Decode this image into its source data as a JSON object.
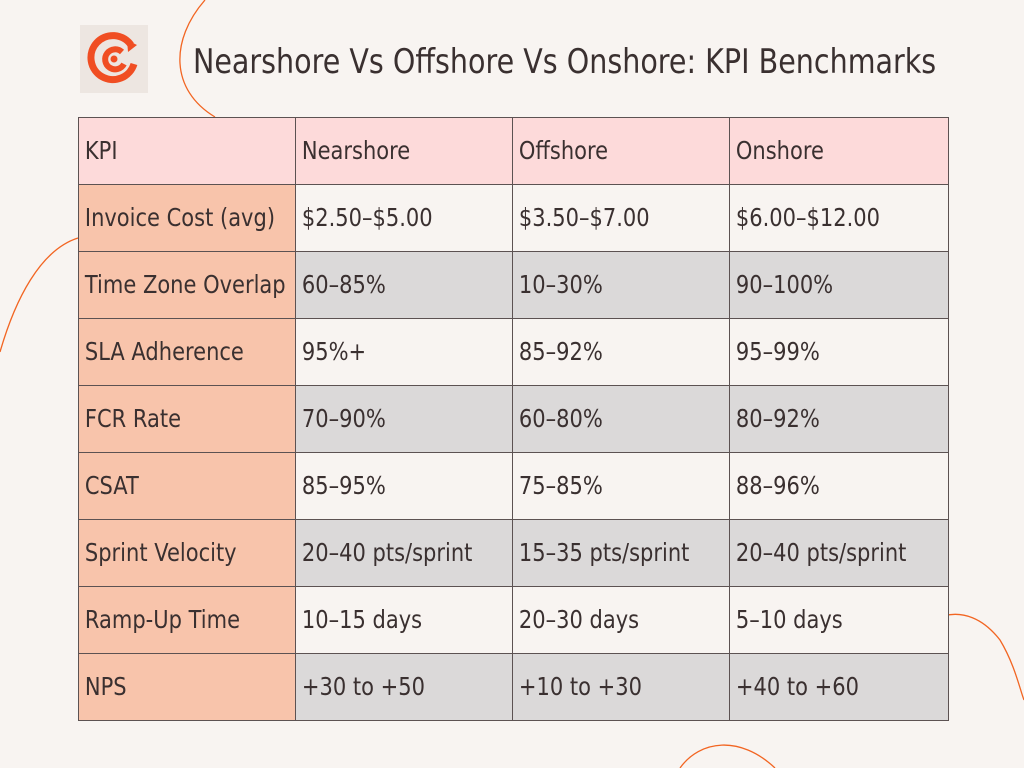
{
  "title": "Nearshore Vs Offshore Vs Onshore: KPI Benchmarks",
  "logo": {
    "icon": "circular-c-arrow-logo",
    "color": "#f04e23"
  },
  "colors": {
    "background": "#f8f4f1",
    "header_row": "#fddada",
    "kpi_column": "#f8c4ab",
    "row_light": "#f8f4f1",
    "row_dark": "#dbd9d9",
    "accent_lines": "#f26522"
  },
  "table": {
    "headers": [
      "KPI",
      "Nearshore",
      "Offshore",
      "Onshore"
    ],
    "rows": [
      {
        "kpi": "Invoice Cost (avg)",
        "nearshore": "$2.50–$5.00",
        "offshore": "$3.50–$7.00",
        "onshore": "$6.00–$12.00"
      },
      {
        "kpi": "Time Zone Overlap",
        "nearshore": "60–85%",
        "offshore": "10–30%",
        "onshore": "90–100%"
      },
      {
        "kpi": "SLA Adherence",
        "nearshore": "95%+",
        "offshore": "85–92%",
        "onshore": "95–99%"
      },
      {
        "kpi": "FCR Rate",
        "nearshore": "70–90%",
        "offshore": "60–80%",
        "onshore": "80–92%"
      },
      {
        "kpi": "CSAT",
        "nearshore": "85–95%",
        "offshore": "75–85%",
        "onshore": "88–96%"
      },
      {
        "kpi": "Sprint Velocity",
        "nearshore": "20–40 pts/sprint",
        "offshore": "15–35 pts/sprint",
        "onshore": "20–40 pts/sprint"
      },
      {
        "kpi": "Ramp-Up Time",
        "nearshore": "10–15 days",
        "offshore": "20–30 days",
        "onshore": "5–10 days"
      },
      {
        "kpi": "NPS",
        "nearshore": "+30 to +50",
        "offshore": "+10 to +30",
        "onshore": "+40 to +60"
      }
    ]
  }
}
